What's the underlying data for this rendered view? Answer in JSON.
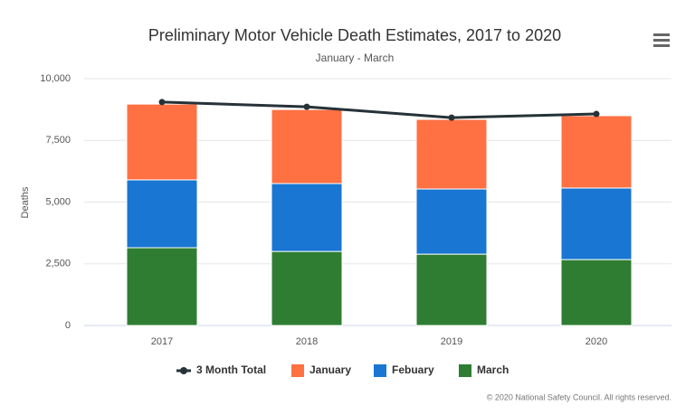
{
  "chart_data": {
    "type": "bar",
    "stacked": true,
    "title": "Preliminary Motor Vehicle Death Estimates, 2017 to 2020",
    "subtitle": "January - March",
    "y_label": "Deaths",
    "credits": "© 2020 National Safety Council. All rights reserved.",
    "categories": [
      "2017",
      "2018",
      "2019",
      "2020"
    ],
    "series": [
      {
        "name": "3 Month Total",
        "type": "line",
        "color": "#263238",
        "values": [
          9050,
          8860,
          8420,
          8570
        ]
      },
      {
        "name": "January",
        "color": "#ff7043",
        "values": [
          3070,
          3000,
          2820,
          2930
        ]
      },
      {
        "name": "Febuary",
        "color": "#1976d2",
        "values": [
          2750,
          2750,
          2640,
          2900
        ]
      },
      {
        "name": "March",
        "color": "#2e7d32",
        "values": [
          3150,
          3000,
          2890,
          2670
        ]
      }
    ],
    "ylim": [
      0,
      10000
    ],
    "yticks": [
      0,
      {
        "value": 2500,
        "label": "2,500"
      },
      {
        "value": 5000,
        "label": "5,000"
      },
      {
        "value": 7500,
        "label": "7,500"
      },
      {
        "value": 10000,
        "label": "10,000"
      }
    ],
    "grid": true
  }
}
